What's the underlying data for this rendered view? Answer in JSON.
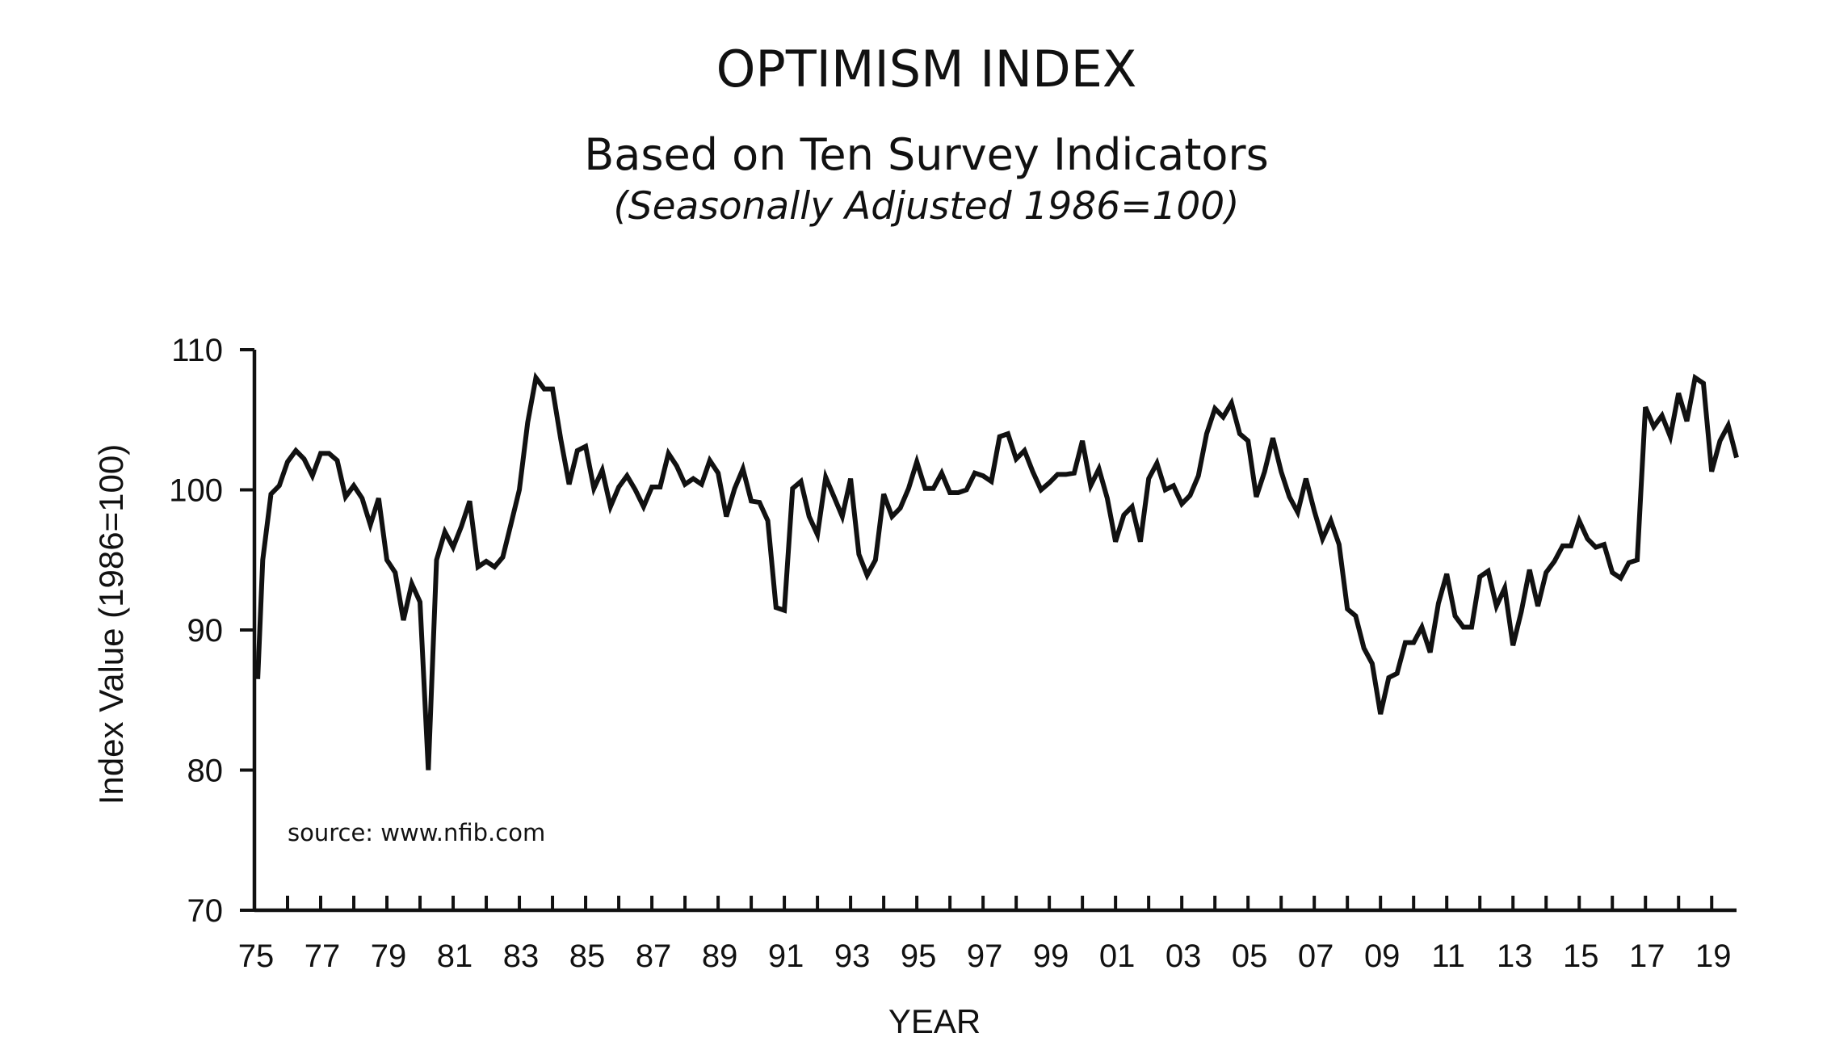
{
  "chart_data": {
    "type": "line",
    "title": "OPTIMISM INDEX",
    "subtitle": "Based on Ten Survey Indicators",
    "note": "(Seasonally Adjusted 1986=100)",
    "xlabel": "YEAR",
    "ylabel": "Index Value (1986=100)",
    "source": "source: www.nfib.com",
    "xlim": [
      1975.0,
      2019.75
    ],
    "ylim": [
      70,
      110
    ],
    "y_ticks": [
      {
        "value": 70,
        "label": "70"
      },
      {
        "value": 80,
        "label": "80"
      },
      {
        "value": 90,
        "label": "90"
      },
      {
        "value": 100,
        "label": "100"
      },
      {
        "value": 110,
        "label": "110"
      }
    ],
    "x_tick_labels": [
      {
        "year": 1975,
        "label": "75"
      },
      {
        "year": 1977,
        "label": "77"
      },
      {
        "year": 1979,
        "label": "79"
      },
      {
        "year": 1981,
        "label": "81"
      },
      {
        "year": 1983,
        "label": "83"
      },
      {
        "year": 1985,
        "label": "85"
      },
      {
        "year": 1987,
        "label": "87"
      },
      {
        "year": 1989,
        "label": "89"
      },
      {
        "year": 1991,
        "label": "91"
      },
      {
        "year": 1993,
        "label": "93"
      },
      {
        "year": 1995,
        "label": "95"
      },
      {
        "year": 1997,
        "label": "97"
      },
      {
        "year": 1999,
        "label": "99"
      },
      {
        "year": 2001,
        "label": "01"
      },
      {
        "year": 2003,
        "label": "03"
      },
      {
        "year": 2005,
        "label": "05"
      },
      {
        "year": 2007,
        "label": "07"
      },
      {
        "year": 2009,
        "label": "09"
      },
      {
        "year": 2011,
        "label": "11"
      },
      {
        "year": 2013,
        "label": "13"
      },
      {
        "year": 2015,
        "label": "15"
      },
      {
        "year": 2017,
        "label": "17"
      },
      {
        "year": 2019,
        "label": "19"
      }
    ],
    "x_minor_tick_step": 1,
    "grid": false,
    "series": [
      {
        "color": "#111111",
        "x": [
          1975.1,
          1975.25,
          1975.5,
          1975.75,
          1976.0,
          1976.25,
          1976.5,
          1976.75,
          1977.0,
          1977.25,
          1977.5,
          1977.75,
          1978.0,
          1978.25,
          1978.5,
          1978.75,
          1979.0,
          1979.25,
          1979.5,
          1979.75,
          1980.0,
          1980.25,
          1980.5,
          1980.75,
          1981.0,
          1981.25,
          1981.5,
          1981.75,
          1982.0,
          1982.25,
          1982.5,
          1982.75,
          1983.0,
          1983.25,
          1983.5,
          1983.75,
          1984.0,
          1984.25,
          1984.5,
          1984.75,
          1985.0,
          1985.25,
          1985.5,
          1985.75,
          1986.0,
          1986.25,
          1986.5,
          1986.75,
          1987.0,
          1987.25,
          1987.5,
          1987.75,
          1988.0,
          1988.25,
          1988.5,
          1988.75,
          1989.0,
          1989.25,
          1989.5,
          1989.75,
          1990.0,
          1990.25,
          1990.5,
          1990.75,
          1991.0,
          1991.25,
          1991.5,
          1991.75,
          1992.0,
          1992.25,
          1992.5,
          1992.75,
          1993.0,
          1993.25,
          1993.5,
          1993.75,
          1994.0,
          1994.25,
          1994.5,
          1994.75,
          1995.0,
          1995.25,
          1995.5,
          1995.75,
          1996.0,
          1996.25,
          1996.5,
          1996.75,
          1997.0,
          1997.25,
          1997.5,
          1997.75,
          1998.0,
          1998.25,
          1998.5,
          1998.75,
          1999.0,
          1999.25,
          1999.5,
          1999.75,
          2000.0,
          2000.25,
          2000.5,
          2000.75,
          2001.0,
          2001.25,
          2001.5,
          2001.75,
          2002.0,
          2002.25,
          2002.5,
          2002.75,
          2003.0,
          2003.25,
          2003.5,
          2003.75,
          2004.0,
          2004.25,
          2004.5,
          2004.75,
          2005.0,
          2005.25,
          2005.5,
          2005.75,
          2006.0,
          2006.25,
          2006.5,
          2006.75,
          2007.0,
          2007.25,
          2007.5,
          2007.75,
          2008.0,
          2008.25,
          2008.5,
          2008.75,
          2009.0,
          2009.25,
          2009.5,
          2009.75,
          2010.0,
          2010.25,
          2010.5,
          2010.75,
          2011.0,
          2011.25,
          2011.5,
          2011.75,
          2012.0,
          2012.25,
          2012.5,
          2012.75,
          2013.0,
          2013.25,
          2013.5,
          2013.75,
          2014.0,
          2014.25,
          2014.5,
          2014.75,
          2015.0,
          2015.25,
          2015.5,
          2015.75,
          2016.0,
          2016.25,
          2016.5,
          2016.75,
          2017.0,
          2017.25,
          2017.5,
          2017.75,
          2018.0,
          2018.25,
          2018.5,
          2018.75,
          2019.0,
          2019.25,
          2019.5,
          2019.75
        ],
        "y": [
          86.5,
          95.0,
          99.7,
          100.3,
          102.0,
          102.8,
          102.2,
          101.0,
          102.6,
          102.6,
          102.1,
          99.5,
          100.3,
          99.4,
          97.5,
          99.4,
          95.0,
          94.1,
          90.7,
          93.3,
          92.0,
          80.0,
          95.0,
          97.0,
          95.9,
          97.4,
          99.2,
          94.5,
          94.9,
          94.5,
          95.2,
          97.6,
          100.0,
          104.8,
          108.0,
          107.2,
          107.2,
          103.6,
          100.4,
          102.8,
          103.1,
          100.1,
          101.4,
          98.8,
          100.2,
          101.0,
          100.0,
          98.8,
          100.2,
          100.2,
          102.6,
          101.7,
          100.4,
          100.8,
          100.4,
          102.1,
          101.2,
          98.1,
          100.1,
          101.5,
          99.2,
          99.1,
          97.8,
          91.6,
          91.4,
          100.1,
          100.6,
          98.1,
          96.8,
          100.9,
          99.5,
          98.1,
          100.8,
          95.4,
          93.9,
          95.0,
          99.7,
          98.1,
          98.7,
          100.1,
          102.0,
          100.1,
          100.1,
          101.2,
          99.8,
          99.8,
          100.0,
          101.2,
          101.0,
          100.6,
          103.8,
          104.0,
          102.2,
          102.8,
          101.3,
          100.0,
          100.5,
          101.1,
          101.1,
          101.2,
          103.5,
          100.3,
          101.5,
          99.4,
          96.3,
          98.2,
          98.8,
          96.3,
          100.8,
          101.9,
          100.0,
          100.3,
          99.0,
          99.6,
          101.0,
          104.0,
          105.8,
          105.2,
          106.2,
          104.0,
          103.5,
          99.5,
          101.3,
          103.7,
          101.3,
          99.5,
          98.4,
          100.8,
          98.5,
          96.5,
          97.8,
          96.1,
          91.5,
          91.0,
          88.7,
          87.6,
          84.0,
          86.6,
          86.9,
          89.1,
          89.1,
          90.2,
          88.4,
          91.9,
          94.0,
          91.0,
          90.2,
          90.2,
          93.8,
          94.2,
          91.7,
          93.0,
          88.9,
          91.3,
          94.3,
          91.7,
          94.1,
          94.9,
          96.0,
          96.0,
          97.8,
          96.5,
          95.9,
          96.1,
          94.1,
          93.7,
          94.8,
          95.0,
          105.9,
          104.5,
          105.3,
          103.8,
          106.9,
          104.9,
          108.0,
          107.6,
          101.3,
          103.5,
          104.6,
          102.3
        ]
      }
    ]
  }
}
